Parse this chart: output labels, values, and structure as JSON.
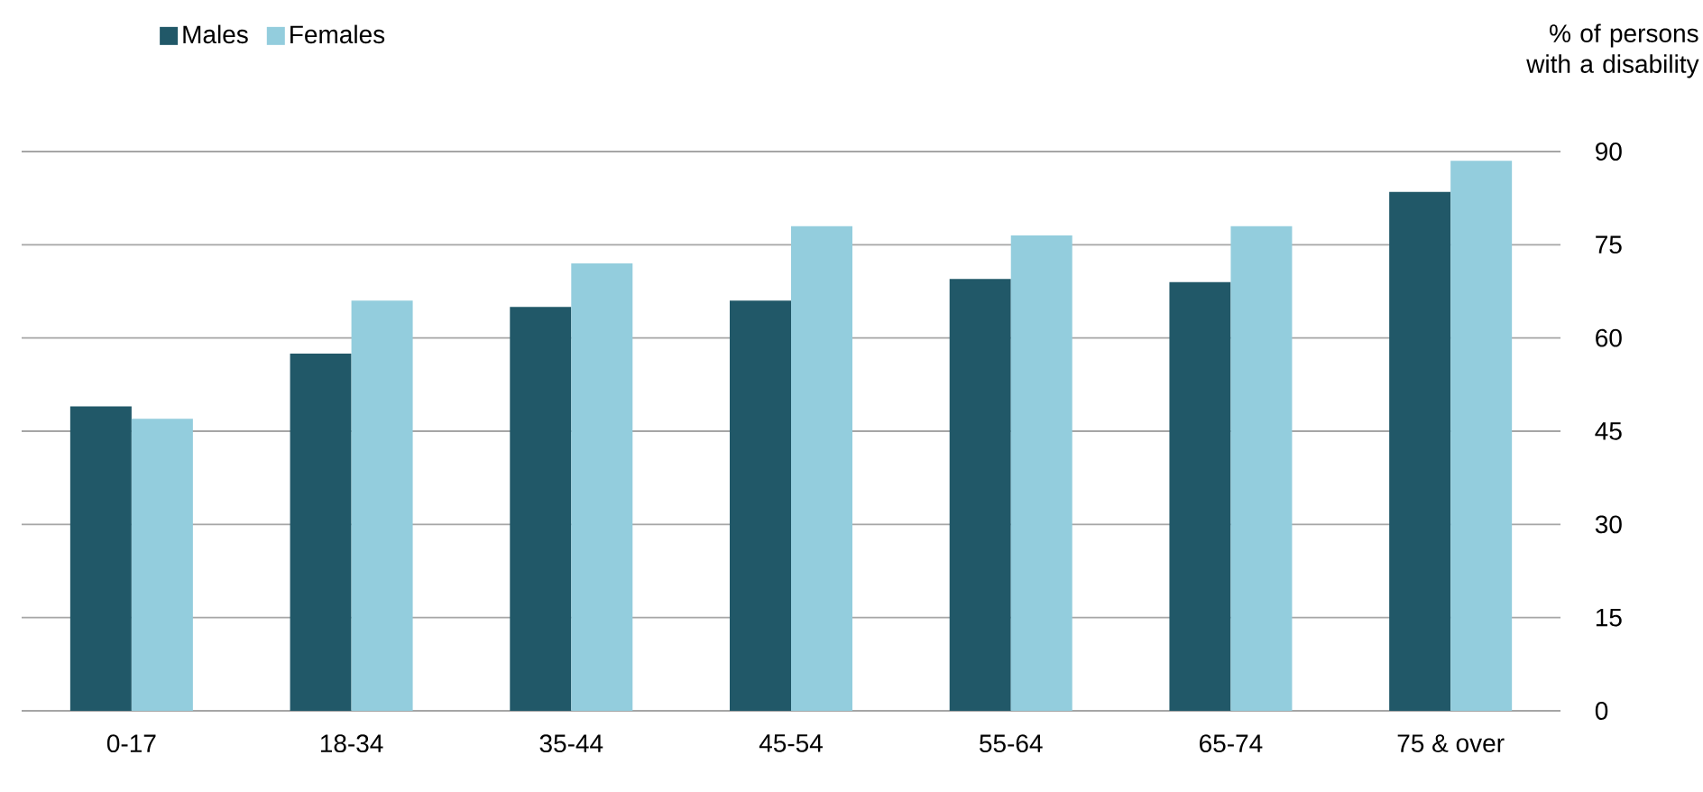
{
  "chart_data": {
    "type": "bar",
    "ylabel": "% of persons with a disability",
    "categories": [
      "0-17",
      "18-34",
      "35-44",
      "45-54",
      "55-64",
      "65-74",
      "75 & over"
    ],
    "series": [
      {
        "name": "Males",
        "color": "#215868",
        "values": [
          49,
          57.5,
          65,
          66,
          69.5,
          69,
          83.5
        ]
      },
      {
        "name": "Females",
        "color": "#93cddd",
        "values": [
          47,
          66,
          72,
          78,
          76.5,
          78,
          88.5
        ]
      }
    ],
    "ylim": [
      0,
      90
    ],
    "yticks": [
      0,
      15,
      30,
      45,
      60,
      75,
      90
    ],
    "grid": "y",
    "legend": "top left"
  }
}
